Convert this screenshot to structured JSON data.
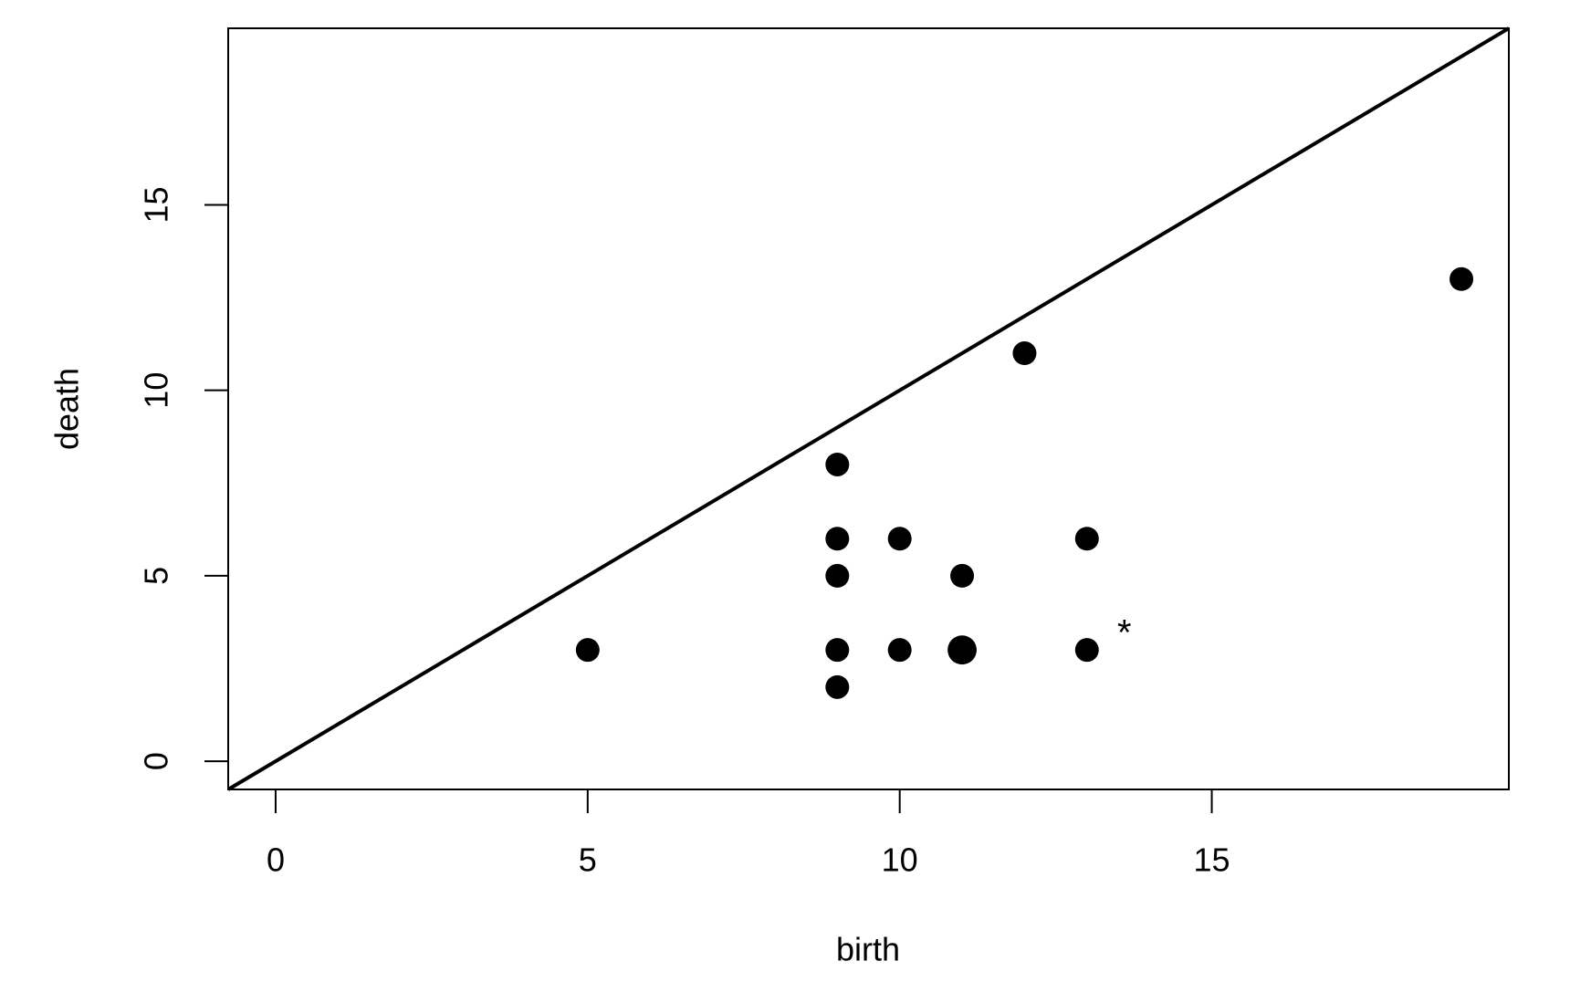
{
  "chart_data": {
    "type": "scatter",
    "x_label": "birth",
    "y_label": "death",
    "x": [
      5,
      9,
      9,
      9,
      9,
      9,
      10,
      10,
      11,
      11,
      12,
      13,
      13,
      19
    ],
    "values": [
      3,
      8,
      6,
      5,
      3,
      2,
      6,
      3,
      5,
      3,
      11,
      6,
      3,
      13
    ],
    "sizes": [
      1,
      1,
      1,
      1,
      1,
      1,
      1,
      1,
      1,
      1.5,
      1,
      1,
      1,
      1
    ],
    "color": "#000000",
    "xlim": [
      -0.76,
      19.76
    ],
    "ylim": [
      -0.76,
      19.76
    ],
    "xticks": [
      0,
      5,
      10,
      15
    ],
    "yticks": [
      0,
      5,
      10,
      15
    ],
    "diagonal": true,
    "annotations": [
      {
        "text": "*",
        "x": 13.6,
        "y": 3.6
      }
    ]
  }
}
